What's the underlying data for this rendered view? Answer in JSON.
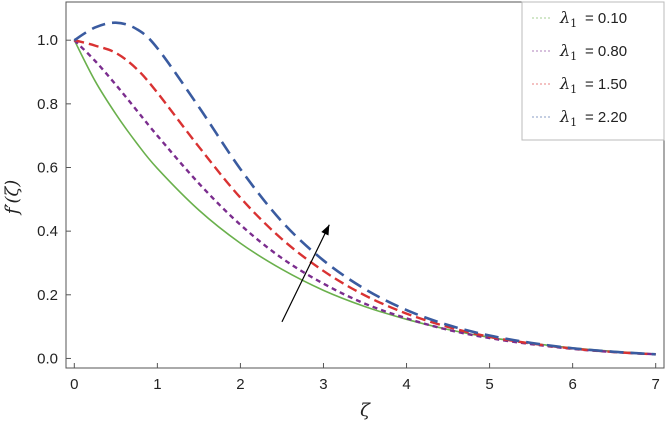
{
  "chart_data": {
    "type": "line",
    "title": "",
    "xlabel": "ζ",
    "ylabel": "f′(ζ)",
    "xlim": [
      -0.1,
      7.1
    ],
    "ylim": [
      -0.03,
      1.12
    ],
    "x_ticks": [
      0,
      1,
      2,
      3,
      4,
      5,
      6,
      7
    ],
    "y_ticks": [
      0.0,
      0.2,
      0.4,
      0.6,
      0.8,
      1.0
    ],
    "x_tick_labels": [
      "0",
      "1",
      "2",
      "3",
      "4",
      "5",
      "6",
      "7"
    ],
    "y_tick_labels": [
      "0.0",
      "0.2",
      "0.4",
      "0.6",
      "0.8",
      "1.0"
    ],
    "grid": false,
    "legend_position": "top-right",
    "legend_symbol": "λ",
    "legend_subscript": "1",
    "x": [
      0,
      0.25,
      0.5,
      0.75,
      1,
      1.5,
      2,
      2.5,
      3,
      3.5,
      4,
      4.5,
      5,
      5.5,
      6,
      6.5,
      7
    ],
    "series": [
      {
        "name": "= 0.10",
        "color": "#6ab04c",
        "dash": "solid",
        "values": [
          1.0,
          0.872,
          0.768,
          0.677,
          0.597,
          0.466,
          0.362,
          0.28,
          0.214,
          0.163,
          0.123,
          0.091,
          0.066,
          0.048,
          0.033,
          0.022,
          0.014
        ]
      },
      {
        "name": "= 0.80",
        "color": "#7b2d8e",
        "dash": "dashed",
        "values": [
          1.0,
          0.935,
          0.86,
          0.78,
          0.7,
          0.55,
          0.42,
          0.315,
          0.235,
          0.172,
          0.126,
          0.09,
          0.064,
          0.045,
          0.03,
          0.02,
          0.013
        ]
      },
      {
        "name": "= 1.50",
        "color": "#d93232",
        "dash": "dashed",
        "values": [
          1.0,
          0.983,
          0.96,
          0.91,
          0.835,
          0.665,
          0.505,
          0.375,
          0.275,
          0.198,
          0.141,
          0.099,
          0.068,
          0.047,
          0.031,
          0.02,
          0.013
        ]
      },
      {
        "name": "= 2.20",
        "color": "#3a5ba0",
        "dash": "dashed",
        "values": [
          1.0,
          1.04,
          1.055,
          1.035,
          0.975,
          0.79,
          0.595,
          0.43,
          0.308,
          0.218,
          0.152,
          0.105,
          0.072,
          0.049,
          0.032,
          0.021,
          0.013
        ]
      }
    ],
    "arrow": {
      "from": [
        2.5,
        0.115
      ],
      "to": [
        3.07,
        0.42
      ]
    }
  }
}
